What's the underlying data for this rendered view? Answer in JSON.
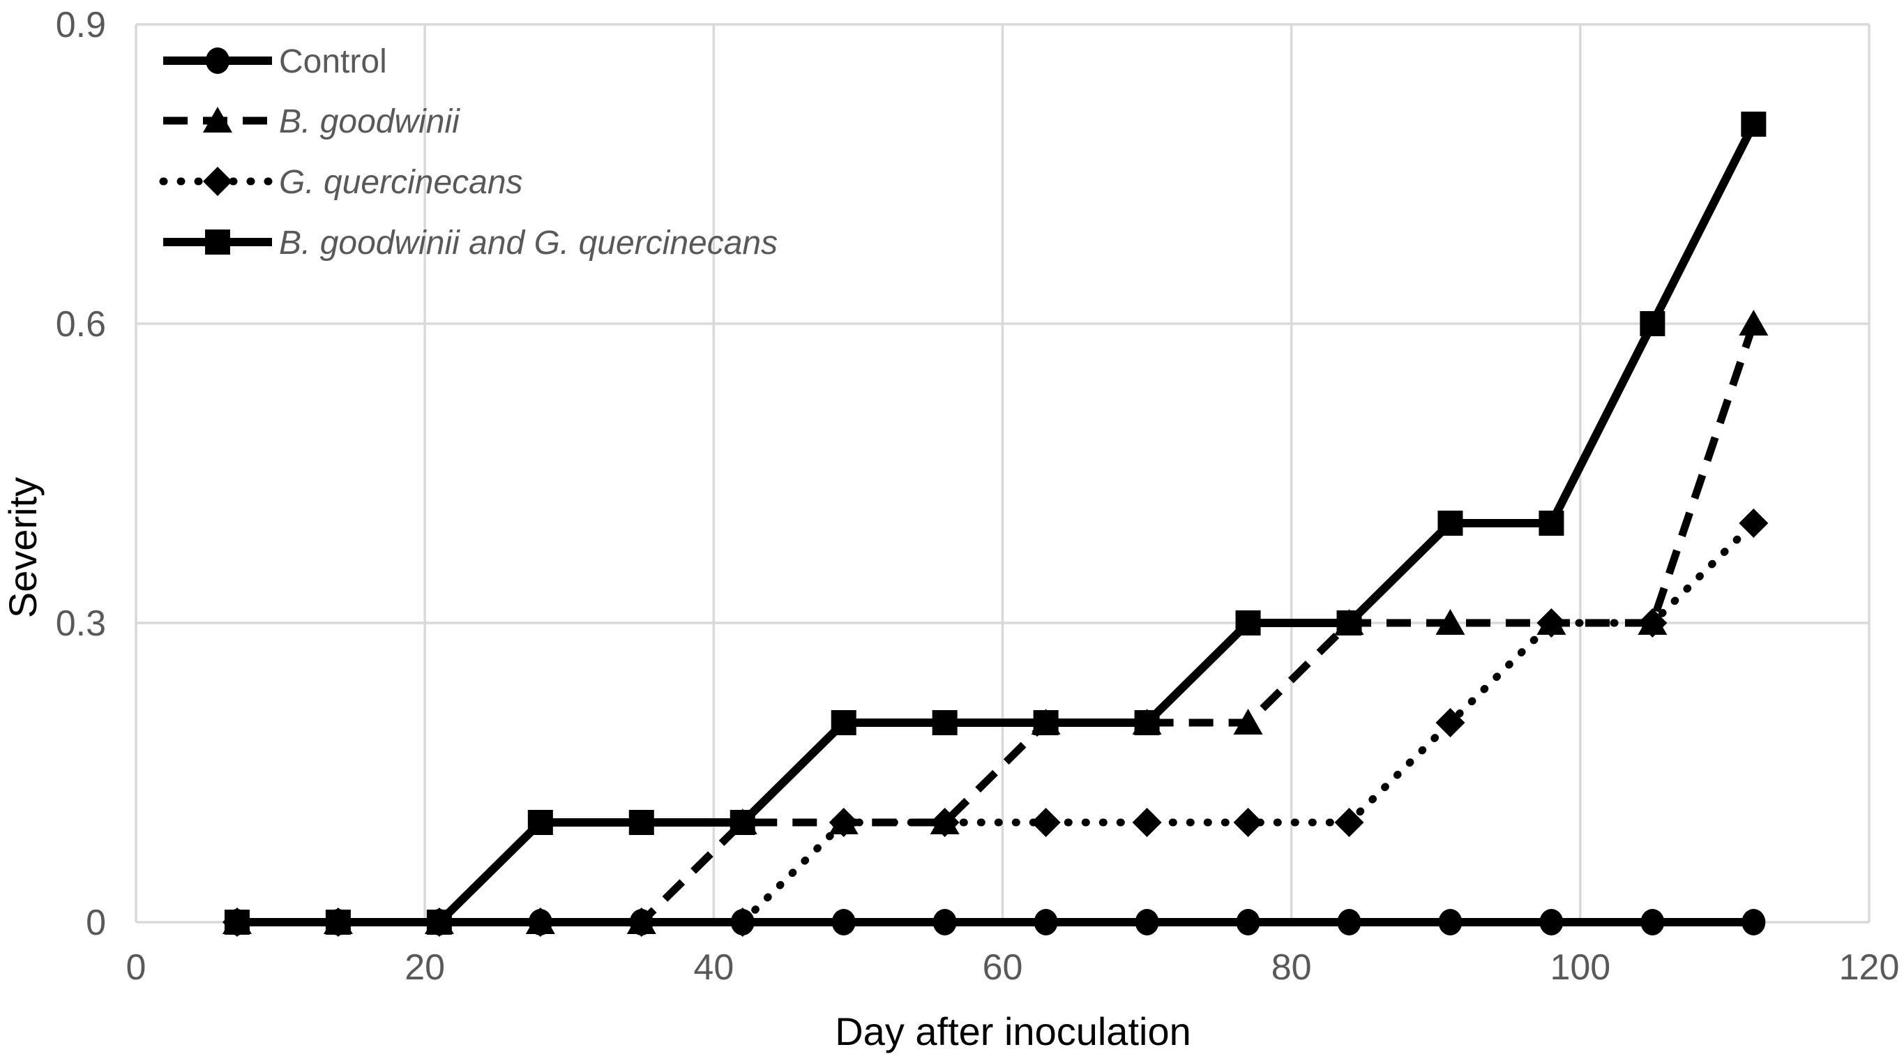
{
  "chart_data": {
    "type": "line",
    "title": "",
    "xlabel": "Day after inoculation",
    "ylabel": "Severity",
    "x": [
      7,
      14,
      21,
      28,
      35,
      42,
      49,
      56,
      63,
      70,
      77,
      84,
      91,
      98,
      105,
      112
    ],
    "series": [
      {
        "name": "Control",
        "italic": false,
        "line": "solid",
        "marker": "circle",
        "values": [
          0,
          0,
          0,
          0,
          0,
          0,
          0,
          0,
          0,
          0,
          0,
          0,
          0,
          0,
          0,
          0
        ]
      },
      {
        "name": "B. goodwinii",
        "italic": true,
        "line": "dashed",
        "marker": "triangle",
        "values": [
          0,
          0,
          0,
          0,
          0,
          0.1,
          0.1,
          0.1,
          0.2,
          0.2,
          0.2,
          0.3,
          0.3,
          0.3,
          0.3,
          0.6
        ]
      },
      {
        "name": "G. quercinecans",
        "italic": true,
        "line": "dotted",
        "marker": "diamond",
        "values": [
          0,
          0,
          0,
          0,
          0,
          0,
          0.1,
          0.1,
          0.1,
          0.1,
          0.1,
          0.1,
          0.2,
          0.3,
          0.3,
          0.4
        ]
      },
      {
        "name": "B. goodwinii and G. quercinecans",
        "italic": true,
        "line": "solid",
        "marker": "square",
        "values": [
          0,
          0,
          0,
          0.1,
          0.1,
          0.1,
          0.2,
          0.2,
          0.2,
          0.2,
          0.3,
          0.3,
          0.4,
          0.4,
          0.6,
          0.8
        ]
      }
    ],
    "xlim": [
      0,
      120
    ],
    "ylim": [
      0,
      0.9
    ],
    "xticks": [
      0,
      20,
      40,
      60,
      80,
      100,
      120
    ],
    "xtick_labels": [
      "0",
      "20",
      "40",
      "60",
      "80",
      "100",
      "120"
    ],
    "yticks": [
      0,
      0.3,
      0.6,
      0.9
    ],
    "ytick_labels": [
      "0",
      "0.3",
      "0.6",
      "0.9"
    ],
    "grid": true,
    "legend_position": "top-left",
    "colors": {
      "series": "#000000",
      "grid": "#d9d9d9",
      "tick_label": "#595959",
      "legend_text": "#595959",
      "axis_title": "#000000",
      "background": "#ffffff"
    }
  }
}
